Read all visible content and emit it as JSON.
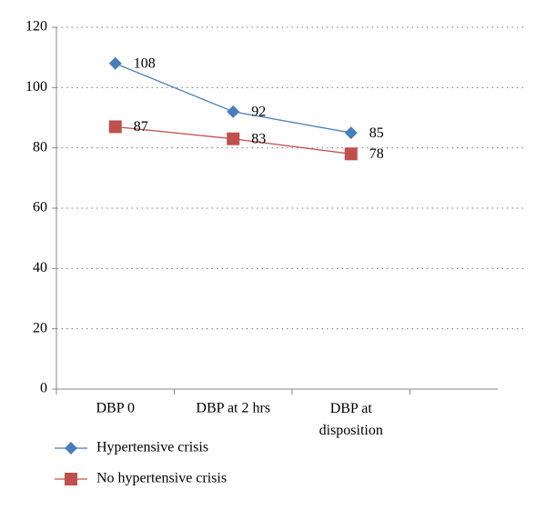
{
  "chart_data": {
    "type": "line",
    "categories": [
      "DBP 0",
      "DBP at 2 hrs",
      "DBP at disposition",
      null
    ],
    "series": [
      {
        "name": "Hypertensive crisis",
        "color": "#4a7ebb",
        "marker": "diamond",
        "values": [
          108,
          92,
          85,
          null
        ]
      },
      {
        "name": "No hypertensive crisis",
        "color": "#c0504d",
        "marker": "square",
        "values": [
          87,
          83,
          78,
          null
        ]
      }
    ],
    "ylim": [
      0,
      120
    ],
    "yticks": [
      0,
      20,
      40,
      60,
      80,
      100,
      120
    ],
    "grid": true,
    "legend": "bottom"
  }
}
